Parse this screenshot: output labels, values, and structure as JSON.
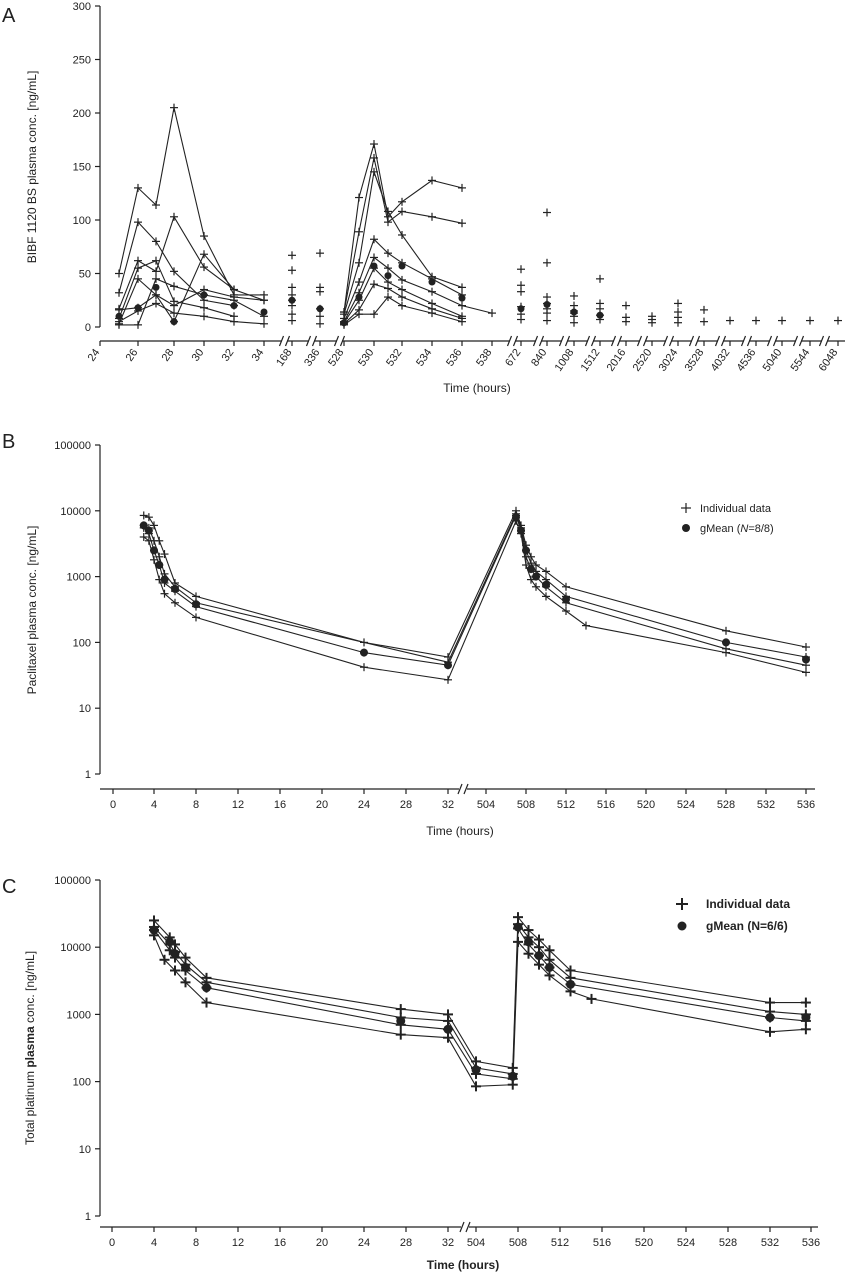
{
  "chart_data": [
    {
      "panel": "A",
      "type": "line",
      "title": "",
      "xlabel": "Time (hours)",
      "ylabel": "BIBF 1120 BS plasma conc. [ng/mL]",
      "x_ticks": [
        "24",
        "26",
        "28",
        "30",
        "32",
        "34",
        "168",
        "336",
        "528",
        "530",
        "532",
        "534",
        "536",
        "538",
        "672",
        "840",
        "1008",
        "1512",
        "2016",
        "2520",
        "3024",
        "3528",
        "4032",
        "4536",
        "5040",
        "5544",
        "6048"
      ],
      "y_ticks": [
        "0",
        "50",
        "100",
        "150",
        "200",
        "250",
        "300"
      ],
      "ylim": [
        0,
        300
      ],
      "y_scale": "linear",
      "grid": false,
      "series": [
        {
          "x": [
            25,
            26,
            27,
            28,
            30,
            32,
            34
          ],
          "y": [
            50,
            130,
            114,
            205,
            85,
            30,
            30
          ]
        },
        {
          "x": [
            25,
            26,
            27,
            28,
            30,
            32
          ],
          "y": [
            32,
            98,
            80,
            52,
            25,
            20
          ]
        },
        {
          "x": [
            25,
            26,
            27,
            28,
            30,
            32
          ],
          "y": [
            17,
            62,
            52,
            103,
            56,
            35
          ]
        },
        {
          "x": [
            25,
            26,
            27,
            28,
            30,
            32
          ],
          "y": [
            8,
            55,
            62,
            24,
            18,
            10
          ]
        },
        {
          "x": [
            25,
            26,
            27,
            28,
            30,
            32,
            34
          ],
          "y": [
            16,
            18,
            30,
            5,
            68,
            35,
            25
          ]
        },
        {
          "x": [
            25,
            26,
            27,
            28,
            30,
            32,
            34
          ],
          "y": [
            3,
            45,
            30,
            20,
            35,
            28,
            25
          ]
        },
        {
          "x": [
            25,
            26,
            27,
            28,
            30,
            32,
            34
          ],
          "y": [
            2,
            2,
            45,
            38,
            30,
            25,
            10
          ]
        },
        {
          "x": [
            25,
            26,
            27,
            28,
            30,
            32,
            34
          ],
          "y": [
            5,
            15,
            22,
            13,
            10,
            5,
            3
          ]
        },
        {
          "x": [
            528,
            529,
            530,
            531,
            532,
            534,
            536
          ],
          "y": [
            14,
            121,
            171,
            103,
            117,
            137,
            130
          ]
        },
        {
          "x": [
            528,
            529,
            530,
            531,
            532,
            534,
            536
          ],
          "y": [
            14,
            89,
            158,
            98,
            108,
            103,
            97
          ]
        },
        {
          "x": [
            528,
            529,
            530,
            531,
            532,
            534,
            536
          ],
          "y": [
            12,
            60,
            145,
            108,
            86,
            47,
            37
          ]
        },
        {
          "x": [
            528,
            529,
            530,
            531,
            532,
            534,
            536
          ],
          "y": [
            8,
            42,
            82,
            69,
            60,
            45,
            30
          ]
        },
        {
          "x": [
            528,
            529,
            530,
            531,
            532,
            534,
            536,
            538
          ],
          "y": [
            5,
            32,
            65,
            55,
            44,
            33,
            20,
            13
          ]
        },
        {
          "x": [
            528,
            529,
            530,
            531,
            532,
            534,
            536
          ],
          "y": [
            4,
            25,
            55,
            42,
            35,
            22,
            10
          ]
        },
        {
          "x": [
            528,
            529,
            530,
            531,
            532,
            534,
            536
          ],
          "y": [
            3,
            16,
            40,
            36,
            28,
            17,
            8
          ]
        },
        {
          "x": [
            528,
            529,
            530,
            531,
            532,
            534,
            536
          ],
          "y": [
            2,
            12,
            12,
            28,
            20,
            13,
            5
          ]
        }
      ],
      "points": [
        {
          "x": 168,
          "y": [
            67,
            53,
            37,
            30,
            25,
            20,
            12,
            6
          ]
        },
        {
          "x": 336,
          "y": [
            69,
            37,
            33,
            17,
            10,
            3
          ]
        },
        {
          "x": 672,
          "y": [
            54,
            39,
            33,
            19,
            12,
            7
          ]
        },
        {
          "x": 840,
          "y": [
            107,
            60,
            28,
            22,
            17,
            13,
            6
          ]
        },
        {
          "x": 1008,
          "y": [
            29,
            20,
            15,
            13,
            10,
            4
          ]
        },
        {
          "x": 1512,
          "y": [
            45,
            22,
            17,
            11,
            7
          ]
        },
        {
          "x": 2016,
          "y": [
            20,
            9,
            5
          ]
        },
        {
          "x": 2520,
          "y": [
            10,
            7,
            4
          ]
        },
        {
          "x": 3024,
          "y": [
            22,
            14,
            9,
            4
          ]
        },
        {
          "x": 3528,
          "y": [
            16,
            5
          ]
        },
        {
          "x": 4032,
          "y": [
            6
          ]
        },
        {
          "x": 4536,
          "y": [
            6
          ]
        },
        {
          "x": 5040,
          "y": [
            6
          ]
        },
        {
          "x": 5544,
          "y": [
            6
          ]
        },
        {
          "x": 6048,
          "y": [
            6
          ]
        }
      ],
      "gmean": {
        "x": [
          25,
          26,
          27,
          28,
          30,
          32,
          34,
          168,
          336,
          528,
          529,
          530,
          531,
          532,
          534,
          536,
          672,
          840,
          1008,
          1512
        ],
        "y": [
          10,
          18,
          37,
          5,
          30,
          20,
          14,
          25,
          17,
          4,
          28,
          57,
          48,
          57,
          42,
          27,
          17,
          21,
          14,
          11
        ]
      }
    },
    {
      "panel": "B",
      "type": "line",
      "title": "",
      "xlabel": "Time (hours)",
      "ylabel": "Paclitaxel plasma conc. [ng/mL]",
      "x_ticks": [
        "0",
        "4",
        "8",
        "12",
        "16",
        "20",
        "24",
        "28",
        "32",
        "504",
        "508",
        "512",
        "516",
        "520",
        "524",
        "528",
        "532",
        "536"
      ],
      "y_ticks": [
        "1",
        "10",
        "100",
        "1000",
        "10000",
        "100000"
      ],
      "ylim": [
        1,
        100000
      ],
      "y_scale": "log",
      "grid": false,
      "legend": {
        "position": "top-right",
        "entries": [
          "Individual data",
          "gMean (N=8/8)"
        ]
      },
      "series": [
        {
          "x": [
            3,
            3.5,
            4,
            4.5,
            5,
            6,
            8,
            24,
            32,
            507,
            507.5,
            508,
            508.5,
            509,
            510,
            512,
            528,
            536
          ],
          "y": [
            8500,
            8000,
            6000,
            3500,
            2200,
            800,
            500,
            100,
            60,
            10000,
            6000,
            3000,
            2000,
            1500,
            1200,
            700,
            150,
            85
          ]
        },
        {
          "x": [
            3,
            3.5,
            4,
            4.5,
            5,
            6,
            8,
            32,
            507,
            507.5,
            508,
            508.5,
            509,
            510,
            512,
            528,
            536
          ],
          "y": [
            6000,
            5500,
            3500,
            2000,
            1100,
            700,
            400,
            50,
            9000,
            5500,
            2500,
            1600,
            1200,
            900,
            500,
            100,
            60
          ]
        },
        {
          "x": [
            3,
            3.5,
            4,
            4.5,
            5,
            6,
            8,
            24,
            32,
            507,
            507.5,
            508,
            508.5,
            509,
            510,
            512,
            528,
            536
          ],
          "y": [
            5500,
            4500,
            2500,
            1500,
            800,
            600,
            350,
            70,
            45,
            8500,
            5000,
            2000,
            1300,
            1000,
            700,
            400,
            80,
            45
          ]
        },
        {
          "x": [
            3,
            3.5,
            4,
            4.5,
            5,
            6,
            8,
            24,
            32,
            507,
            507.5,
            508,
            508.5,
            509,
            510,
            512,
            514,
            528,
            536
          ],
          "y": [
            4000,
            3500,
            1800,
            900,
            550,
            400,
            240,
            42,
            27,
            7000,
            4500,
            1500,
            900,
            700,
            500,
            300,
            180,
            70,
            35
          ]
        }
      ],
      "gmean": {
        "x": [
          3,
          3.5,
          4,
          4.5,
          5,
          6,
          8,
          24,
          32,
          507,
          507.5,
          508,
          508.5,
          509,
          510,
          512,
          528,
          536
        ],
        "y": [
          6000,
          5000,
          2500,
          1500,
          900,
          650,
          380,
          70,
          45,
          8000,
          5000,
          2500,
          1300,
          1000,
          750,
          450,
          100,
          55
        ]
      }
    },
    {
      "panel": "C",
      "type": "line",
      "title": "",
      "xlabel": "Time (hours)",
      "ylabel": "Total platinum plasma conc. [ng/mL]",
      "x_ticks": [
        "0",
        "4",
        "8",
        "12",
        "16",
        "20",
        "24",
        "28",
        "32",
        "504",
        "508",
        "512",
        "516",
        "520",
        "524",
        "528",
        "532",
        "536"
      ],
      "y_ticks": [
        "1",
        "10",
        "100",
        "1000",
        "10000",
        "100000"
      ],
      "ylim": [
        1,
        100000
      ],
      "y_scale": "log",
      "grid": false,
      "legend": {
        "position": "top-right",
        "entries": [
          "Individual data",
          "gMean (N=6/6)"
        ]
      },
      "series": [
        {
          "x": [
            4,
            5.5,
            6,
            7,
            9,
            27.5,
            32,
            504,
            507.5,
            508,
            509,
            510,
            511,
            513,
            532,
            535.5
          ],
          "y": [
            25000,
            14000,
            11000,
            7000,
            3500,
            1200,
            1000,
            200,
            160,
            28000,
            18000,
            13000,
            9000,
            4500,
            1500,
            1500
          ]
        },
        {
          "x": [
            4,
            5.5,
            6,
            7,
            9,
            27.5,
            32,
            504,
            507.5,
            508,
            509,
            510,
            511,
            513,
            532,
            535.5
          ],
          "y": [
            20000,
            11000,
            8500,
            5500,
            3000,
            900,
            800,
            160,
            130,
            22000,
            14000,
            10000,
            6500,
            3500,
            1100,
            1000
          ]
        },
        {
          "x": [
            4,
            5.5,
            6,
            7,
            9,
            27.5,
            32,
            504,
            507.5,
            508,
            509,
            510,
            511,
            513,
            532,
            535.5
          ],
          "y": [
            18000,
            9000,
            7000,
            4500,
            2500,
            700,
            600,
            130,
            110,
            19000,
            11000,
            7500,
            5000,
            2800,
            900,
            800
          ]
        },
        {
          "x": [
            4,
            5,
            6,
            7,
            9,
            27.5,
            32,
            504,
            507.5,
            508,
            509,
            510,
            511,
            513,
            515,
            532,
            535.5
          ],
          "y": [
            15000,
            6500,
            4500,
            3000,
            1500,
            500,
            450,
            85,
            90,
            12000,
            8000,
            5500,
            3800,
            2200,
            1700,
            550,
            600
          ]
        }
      ],
      "gmean": {
        "x": [
          4,
          5.5,
          6,
          7,
          9,
          27.5,
          32,
          504,
          507.5,
          508,
          509,
          510,
          511,
          513,
          532,
          535.5
        ],
        "y": [
          18000,
          12000,
          8000,
          5000,
          2500,
          800,
          600,
          150,
          120,
          20000,
          12000,
          7500,
          5000,
          2800,
          900,
          900
        ]
      }
    }
  ],
  "panels": {
    "A": {
      "label": "A",
      "xlabel": "Time (hours)",
      "ylabel": "BIBF 1120 BS plasma conc. [ng/mL]"
    },
    "B": {
      "label": "B",
      "xlabel": "Time (hours)",
      "ylabel": "Paclitaxel plasma conc. [ng/mL]",
      "legend_individual": "Individual data",
      "legend_gmean_prefix": "gMean (",
      "legend_gmean_italic": "N",
      "legend_gmean_suffix": "=8/8)"
    },
    "C": {
      "label": "C",
      "xlabel": "Time (hours)",
      "ylabel_prefix": "Total platinum ",
      "ylabel_bold": "plasma",
      "ylabel_suffix": " conc. [ng/mL]",
      "legend_individual": "Individual data",
      "legend_gmean": "gMean (N=6/6)"
    }
  }
}
